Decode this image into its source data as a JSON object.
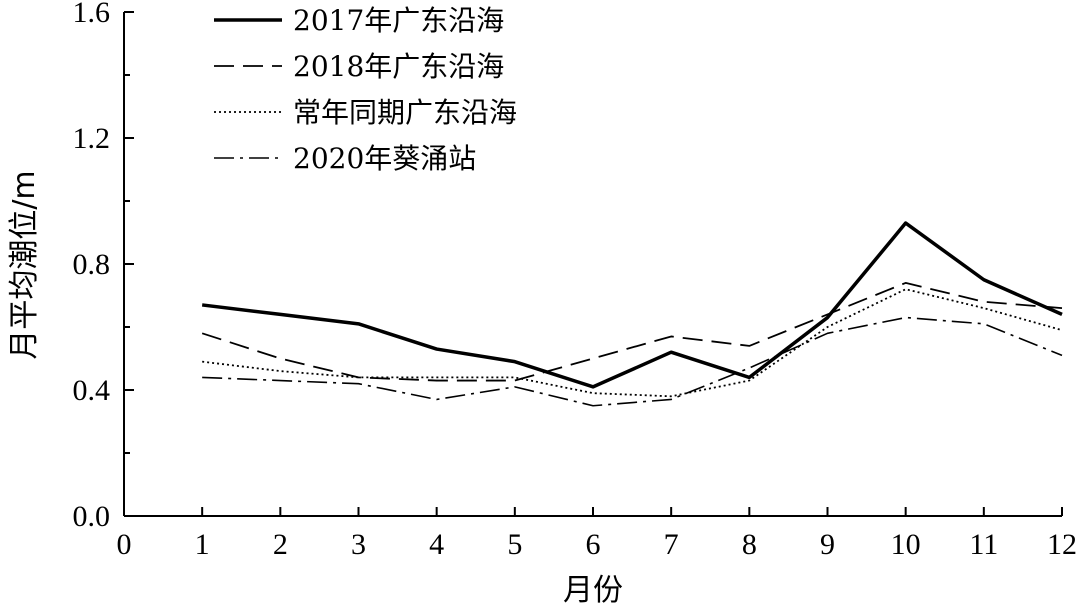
{
  "chart_data": {
    "type": "line",
    "xlabel": "月份",
    "ylabel": "月平均潮位/m",
    "xlim": [
      0,
      12
    ],
    "ylim": [
      0,
      1.6
    ],
    "x_ticks": [
      "0",
      "1",
      "2",
      "3",
      "4",
      "5",
      "6",
      "7",
      "8",
      "9",
      "10",
      "11",
      "12"
    ],
    "y_ticks": [
      "0.0",
      "0.4",
      "0.8",
      "1.2",
      "1.6"
    ],
    "grid": false,
    "legend_position": "top-left",
    "x": [
      1,
      2,
      3,
      4,
      5,
      6,
      7,
      8,
      9,
      10,
      11,
      12
    ],
    "series": [
      {
        "name": "2017年广东沿海",
        "style": "solid-thick",
        "values": [
          0.67,
          0.64,
          0.61,
          0.53,
          0.49,
          0.41,
          0.52,
          0.44,
          0.63,
          0.93,
          0.75,
          0.64
        ]
      },
      {
        "name": "2018年广东沿海",
        "style": "dashed",
        "values": [
          0.58,
          0.5,
          0.44,
          0.43,
          0.43,
          0.5,
          0.57,
          0.54,
          0.64,
          0.74,
          0.68,
          0.66
        ]
      },
      {
        "name": "常年同期广东沿海",
        "style": "dotted",
        "values": [
          0.49,
          0.46,
          0.44,
          0.44,
          0.44,
          0.39,
          0.38,
          0.43,
          0.6,
          0.72,
          0.66,
          0.59
        ]
      },
      {
        "name": "2020年葵涌站",
        "style": "dashdot",
        "values": [
          0.44,
          0.43,
          0.42,
          0.37,
          0.41,
          0.35,
          0.37,
          0.47,
          0.58,
          0.63,
          0.61,
          0.51
        ]
      }
    ]
  }
}
